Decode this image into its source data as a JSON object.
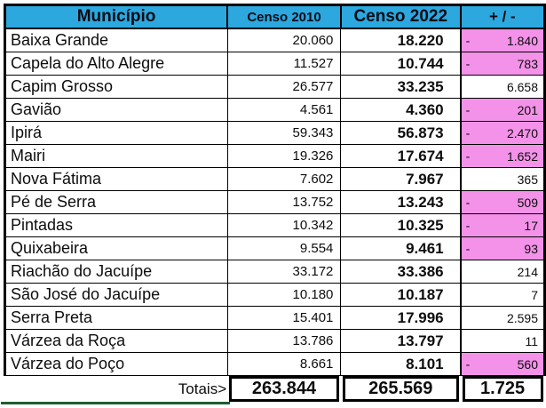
{
  "colors": {
    "header_bg": "#2CA8DF",
    "negative_bg": "#F392E8",
    "selection_green": "#1F5C33",
    "border": "#000000"
  },
  "table": {
    "headers": {
      "municipio": "Município",
      "censo_2010": "Censo 2010",
      "censo_2022": "Censo 2022",
      "diff": "+ / -"
    },
    "rows": [
      {
        "name": "Baixa Grande",
        "c2010": "20.060",
        "c2022": "18.220",
        "diff": "1.840",
        "negative": true
      },
      {
        "name": "Capela do Alto Alegre",
        "c2010": "11.527",
        "c2022": "10.744",
        "diff": "783",
        "negative": true
      },
      {
        "name": "Capim Grosso",
        "c2010": "26.577",
        "c2022": "33.235",
        "diff": "6.658",
        "negative": false
      },
      {
        "name": "Gavião",
        "c2010": "4.561",
        "c2022": "4.360",
        "diff": "201",
        "negative": true
      },
      {
        "name": "Ipirá",
        "c2010": "59.343",
        "c2022": "56.873",
        "diff": "2.470",
        "negative": true
      },
      {
        "name": "Mairi",
        "c2010": "19.326",
        "c2022": "17.674",
        "diff": "1.652",
        "negative": true
      },
      {
        "name": "Nova Fátima",
        "c2010": "7.602",
        "c2022": "7.967",
        "diff": "365",
        "negative": false
      },
      {
        "name": "Pé de Serra",
        "c2010": "13.752",
        "c2022": "13.243",
        "diff": "509",
        "negative": true
      },
      {
        "name": "Pintadas",
        "c2010": "10.342",
        "c2022": "10.325",
        "diff": "17",
        "negative": true
      },
      {
        "name": "Quixabeira",
        "c2010": "9.554",
        "c2022": "9.461",
        "diff": "93",
        "negative": true
      },
      {
        "name": "Riachão do Jacuípe",
        "c2010": "33.172",
        "c2022": "33.386",
        "diff": "214",
        "negative": false
      },
      {
        "name": "São José do Jacuípe",
        "c2010": "10.180",
        "c2022": "10.187",
        "diff": "7",
        "negative": false
      },
      {
        "name": "Serra Preta",
        "c2010": "15.401",
        "c2022": "17.996",
        "diff": "2.595",
        "negative": false
      },
      {
        "name": "Várzea da Roça",
        "c2010": "13.786",
        "c2022": "13.797",
        "diff": "11",
        "negative": false
      },
      {
        "name": "Várzea do Poço",
        "c2010": "8.661",
        "c2022": "8.101",
        "diff": "560",
        "negative": true
      }
    ],
    "totals": {
      "label": "Totais>",
      "censo_2010": "263.844",
      "censo_2022": "265.569",
      "diff": "1.725"
    }
  },
  "chart_data": {
    "type": "table",
    "title": "",
    "columns": [
      "Município",
      "Censo 2010",
      "Censo 2022",
      "+ / -"
    ],
    "rows": [
      [
        "Baixa Grande",
        20060,
        18220,
        -1840
      ],
      [
        "Capela do Alto Alegre",
        11527,
        10744,
        -783
      ],
      [
        "Capim Grosso",
        26577,
        33235,
        6658
      ],
      [
        "Gavião",
        4561,
        4360,
        -201
      ],
      [
        "Ipirá",
        59343,
        56873,
        -2470
      ],
      [
        "Mairi",
        19326,
        17674,
        -1652
      ],
      [
        "Nova Fátima",
        7602,
        7967,
        365
      ],
      [
        "Pé de Serra",
        13752,
        13243,
        -509
      ],
      [
        "Pintadas",
        10342,
        10325,
        -17
      ],
      [
        "Quixabeira",
        9554,
        9461,
        -93
      ],
      [
        "Riachão do Jacuípe",
        33172,
        33386,
        214
      ],
      [
        "São José do Jacuípe",
        10180,
        10187,
        7
      ],
      [
        "Serra Preta",
        15401,
        17996,
        2595
      ],
      [
        "Várzea da Roça",
        13786,
        13797,
        11
      ],
      [
        "Várzea do Poço",
        8661,
        8101,
        -560
      ]
    ],
    "totals": [
      "Totais>",
      263844,
      265569,
      1725
    ],
    "layout_hints": {
      "negative_cells_highlighted": "pink",
      "negative_format": "accounting (leading minus at left edge)",
      "totals_row": "bold boxed cells"
    }
  }
}
